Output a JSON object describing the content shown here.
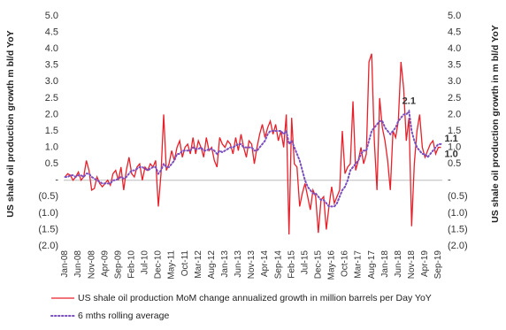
{
  "chart_data": {
    "type": "line",
    "y_label": "US shale oil production growth m bl/d YoY",
    "y2_label": "US shale oil production growth in m bl/d YoY",
    "categories": [
      "Jan-08",
      null,
      null,
      null,
      null,
      "Jun-08",
      null,
      null,
      null,
      null,
      "Nov-08",
      null,
      null,
      null,
      null,
      "Apr-09",
      null,
      null,
      null,
      null,
      "Sep-09",
      null,
      null,
      null,
      null,
      "Feb-10",
      null,
      null,
      null,
      null,
      "Jul-10",
      null,
      null,
      null,
      null,
      "Dec-10",
      null,
      null,
      null,
      null,
      "May-11",
      null,
      null,
      null,
      null,
      "Oct-11",
      null,
      null,
      null,
      null,
      "Mar-12",
      null,
      null,
      null,
      null,
      "Aug-12",
      null,
      null,
      null,
      null,
      "Jan-13",
      null,
      null,
      null,
      null,
      "Jun-13",
      null,
      null,
      null,
      null,
      "Nov-13",
      null,
      null,
      null,
      null,
      "Apr-14",
      null,
      null,
      null,
      null,
      "Sep-14",
      null,
      null,
      null,
      null,
      "Feb-15",
      null,
      null,
      null,
      null,
      "Jul-15",
      null,
      null,
      null,
      null,
      "Dec-15",
      null,
      null,
      null,
      null,
      "May-16",
      null,
      null,
      null,
      null,
      "Oct-16",
      null,
      null,
      null,
      null,
      "Mar-17",
      null,
      null,
      null,
      null,
      "Aug-17",
      null,
      null,
      null,
      null,
      "Jan-18",
      null,
      null,
      null,
      null,
      "Jun-18",
      null,
      null,
      null,
      null,
      "Nov-18",
      null,
      null,
      null,
      null,
      "Apr-19",
      null,
      null,
      null,
      null,
      "Sep-19",
      null
    ],
    "series": [
      {
        "name": "US shale oil production MoM change annualized growth in million barrels per Day YoY",
        "color": "#e8202a",
        "style": "solid",
        "values": [
          0.1,
          0.2,
          0.15,
          0.0,
          0.1,
          0.25,
          0.0,
          0.1,
          0.6,
          0.3,
          -0.3,
          -0.25,
          0.1,
          -0.1,
          -0.2,
          -0.1,
          0.0,
          -0.15,
          0.2,
          0.3,
          0.0,
          0.4,
          -0.3,
          0.3,
          0.7,
          0.2,
          0.1,
          0.4,
          0.5,
          0.0,
          0.4,
          0.3,
          0.5,
          0.4,
          0.6,
          -0.8,
          0.2,
          2.0,
          0.3,
          0.5,
          0.9,
          0.6,
          1.0,
          1.2,
          0.7,
          1.0,
          1.1,
          0.8,
          1.3,
          0.8,
          1.2,
          1.0,
          0.7,
          1.3,
          0.9,
          1.0,
          0.6,
          0.4,
          1.3,
          1.1,
          1.0,
          1.2,
          1.1,
          0.8,
          1.3,
          0.9,
          1.4,
          1.0,
          0.7,
          1.2,
          1.1,
          0.5,
          1.0,
          1.4,
          1.7,
          1.3,
          1.6,
          1.8,
          1.4,
          1.7,
          1.2,
          1.5,
          1.0,
          2.0,
          -1.65,
          1.9,
          0.5,
          0.4,
          -0.8,
          -0.4,
          -0.1,
          -0.5,
          -0.9,
          -0.3,
          -0.5,
          -1.6,
          -0.6,
          -0.5,
          -1.5,
          -0.8,
          -0.2,
          -0.7,
          -0.5,
          -0.3,
          1.5,
          0.2,
          0.4,
          0.5,
          2.4,
          0.3,
          0.6,
          1.0,
          0.5,
          0.8,
          3.6,
          3.85,
          1.2,
          -0.3,
          2.5,
          1.6,
          1.2,
          0.6,
          -0.3,
          1.5,
          1.3,
          1.8,
          3.6,
          2.8,
          1.2,
          1.9,
          -1.4,
          0.5,
          1.5,
          2.0,
          1.0,
          0.7,
          0.9,
          1.1,
          1.2,
          0.8,
          1.0,
          1.0
        ],
        "value_labels": [
          null,
          null,
          null,
          null,
          null,
          null,
          null,
          null,
          null,
          null,
          null,
          null,
          null,
          null,
          null,
          null,
          null,
          null,
          null,
          null,
          null,
          null,
          null,
          null,
          null,
          null,
          null,
          null,
          null,
          null,
          null,
          null,
          null,
          null,
          null,
          null,
          null,
          null,
          null,
          null,
          null,
          null,
          null,
          null,
          null,
          null,
          null,
          null,
          null,
          null,
          null,
          null,
          null,
          null,
          null,
          null,
          null,
          null,
          null,
          null,
          null,
          null,
          null,
          null,
          null,
          null,
          null,
          null,
          null,
          null,
          null,
          null,
          null,
          null,
          null,
          null,
          null,
          null,
          null,
          null,
          null,
          null,
          null,
          null,
          null,
          null,
          null,
          null,
          null,
          null,
          null,
          null,
          null,
          null,
          null,
          null,
          null,
          null,
          null,
          null,
          null,
          null,
          null,
          null,
          null,
          null,
          null,
          null,
          null,
          null,
          null,
          null,
          null,
          null,
          null,
          null,
          null,
          null,
          null,
          null,
          null,
          null,
          null,
          null,
          null,
          null,
          null,
          null,
          null,
          null,
          null,
          null,
          null,
          null,
          null,
          null,
          null,
          null,
          null,
          null,
          null,
          "1.0"
        ]
      },
      {
        "name": "6 mths rolling average",
        "color": "#7a4fbf",
        "style": "dotted",
        "values": [
          0.1,
          0.1,
          0.15,
          0.15,
          0.1,
          0.15,
          0.15,
          0.1,
          0.2,
          0.2,
          0.1,
          0.05,
          0.0,
          -0.05,
          -0.1,
          -0.1,
          -0.1,
          -0.1,
          0.0,
          0.0,
          0.05,
          0.1,
          0.05,
          0.1,
          0.2,
          0.3,
          0.3,
          0.35,
          0.4,
          0.4,
          0.35,
          0.3,
          0.35,
          0.4,
          0.4,
          0.2,
          0.3,
          0.5,
          0.4,
          0.4,
          0.5,
          0.6,
          0.8,
          0.8,
          0.9,
          0.9,
          0.9,
          0.9,
          1.0,
          0.95,
          0.95,
          1.0,
          0.9,
          0.9,
          0.95,
          0.95,
          0.9,
          0.8,
          0.9,
          0.85,
          0.9,
          0.95,
          1.0,
          1.0,
          1.05,
          1.1,
          1.1,
          1.0,
          1.0,
          1.0,
          1.0,
          0.9,
          0.9,
          1.0,
          1.1,
          1.2,
          1.4,
          1.5,
          1.5,
          1.5,
          1.5,
          1.5,
          1.4,
          1.5,
          1.1,
          1.2,
          1.0,
          0.8,
          0.6,
          0.3,
          0.0,
          -0.2,
          -0.3,
          -0.4,
          -0.4,
          -0.5,
          -0.6,
          -0.6,
          -0.7,
          -0.8,
          -0.8,
          -0.8,
          -0.7,
          -0.5,
          -0.3,
          -0.2,
          0.0,
          0.3,
          0.4,
          0.5,
          0.6,
          0.8,
          0.9,
          0.9,
          1.2,
          1.5,
          1.6,
          1.7,
          1.8,
          1.8,
          1.6,
          1.5,
          1.4,
          1.5,
          1.6,
          1.8,
          1.9,
          2.0,
          2.0,
          2.1,
          1.5,
          1.2,
          1.0,
          0.9,
          0.8,
          0.8,
          0.7,
          0.8,
          0.9,
          1.0,
          1.1,
          1.1
        ],
        "value_labels": [
          null,
          null,
          null,
          null,
          null,
          null,
          null,
          null,
          null,
          null,
          null,
          null,
          null,
          null,
          null,
          null,
          null,
          null,
          null,
          null,
          null,
          null,
          null,
          null,
          null,
          null,
          null,
          null,
          null,
          null,
          null,
          null,
          null,
          null,
          null,
          null,
          null,
          null,
          null,
          null,
          null,
          null,
          null,
          null,
          null,
          null,
          null,
          null,
          null,
          null,
          null,
          null,
          null,
          null,
          null,
          null,
          null,
          null,
          null,
          null,
          null,
          null,
          null,
          null,
          null,
          null,
          null,
          null,
          null,
          null,
          null,
          null,
          null,
          null,
          null,
          null,
          null,
          null,
          null,
          null,
          null,
          null,
          null,
          null,
          null,
          null,
          null,
          null,
          null,
          null,
          null,
          null,
          null,
          null,
          null,
          null,
          null,
          null,
          null,
          null,
          null,
          null,
          null,
          null,
          null,
          null,
          null,
          null,
          null,
          null,
          null,
          null,
          null,
          null,
          null,
          null,
          null,
          null,
          null,
          null,
          null,
          null,
          null,
          null,
          null,
          null,
          null,
          null,
          null,
          "2.1",
          null,
          null,
          null,
          null,
          null,
          null,
          null,
          null,
          null,
          null,
          null,
          "1.1"
        ]
      }
    ],
    "ylim": [
      -2,
      5
    ],
    "yticks": [
      {
        "value": 5,
        "label": "5.0"
      },
      4.5,
      {
        "value": 4,
        "label": "4.0"
      },
      3.5,
      {
        "value": 3,
        "label": "3.0"
      },
      2.5,
      {
        "value": 2,
        "label": "2.0"
      },
      1.5,
      {
        "value": 1,
        "label": "1.0"
      },
      0.5,
      {
        "value": 0,
        "label": "-"
      },
      {
        "value": -0.5,
        "label": "(0.5)"
      },
      {
        "value": -1,
        "label": "(1.0)"
      },
      {
        "value": -1.5,
        "label": "(1.5)"
      },
      {
        "value": -2,
        "label": "(2.0)"
      }
    ],
    "y2lim": [
      -2,
      5
    ],
    "y2ticks": [
      {
        "value": 5,
        "label": "5.0"
      },
      4.5,
      {
        "value": 4,
        "label": "4.0"
      },
      3.5,
      {
        "value": 3,
        "label": "3.0"
      },
      2.5,
      {
        "value": 2,
        "label": "2.0"
      },
      1.5,
      {
        "value": 1,
        "label": "1.0"
      },
      0.5,
      {
        "value": 0,
        "label": "-"
      },
      {
        "value": -0.5,
        "label": "(0.5)"
      },
      {
        "value": -1,
        "label": "(1.0)"
      },
      {
        "value": -1.5,
        "label": "(1.5)"
      },
      {
        "value": -2,
        "label": "(2.0)"
      }
    ],
    "grid": false
  }
}
